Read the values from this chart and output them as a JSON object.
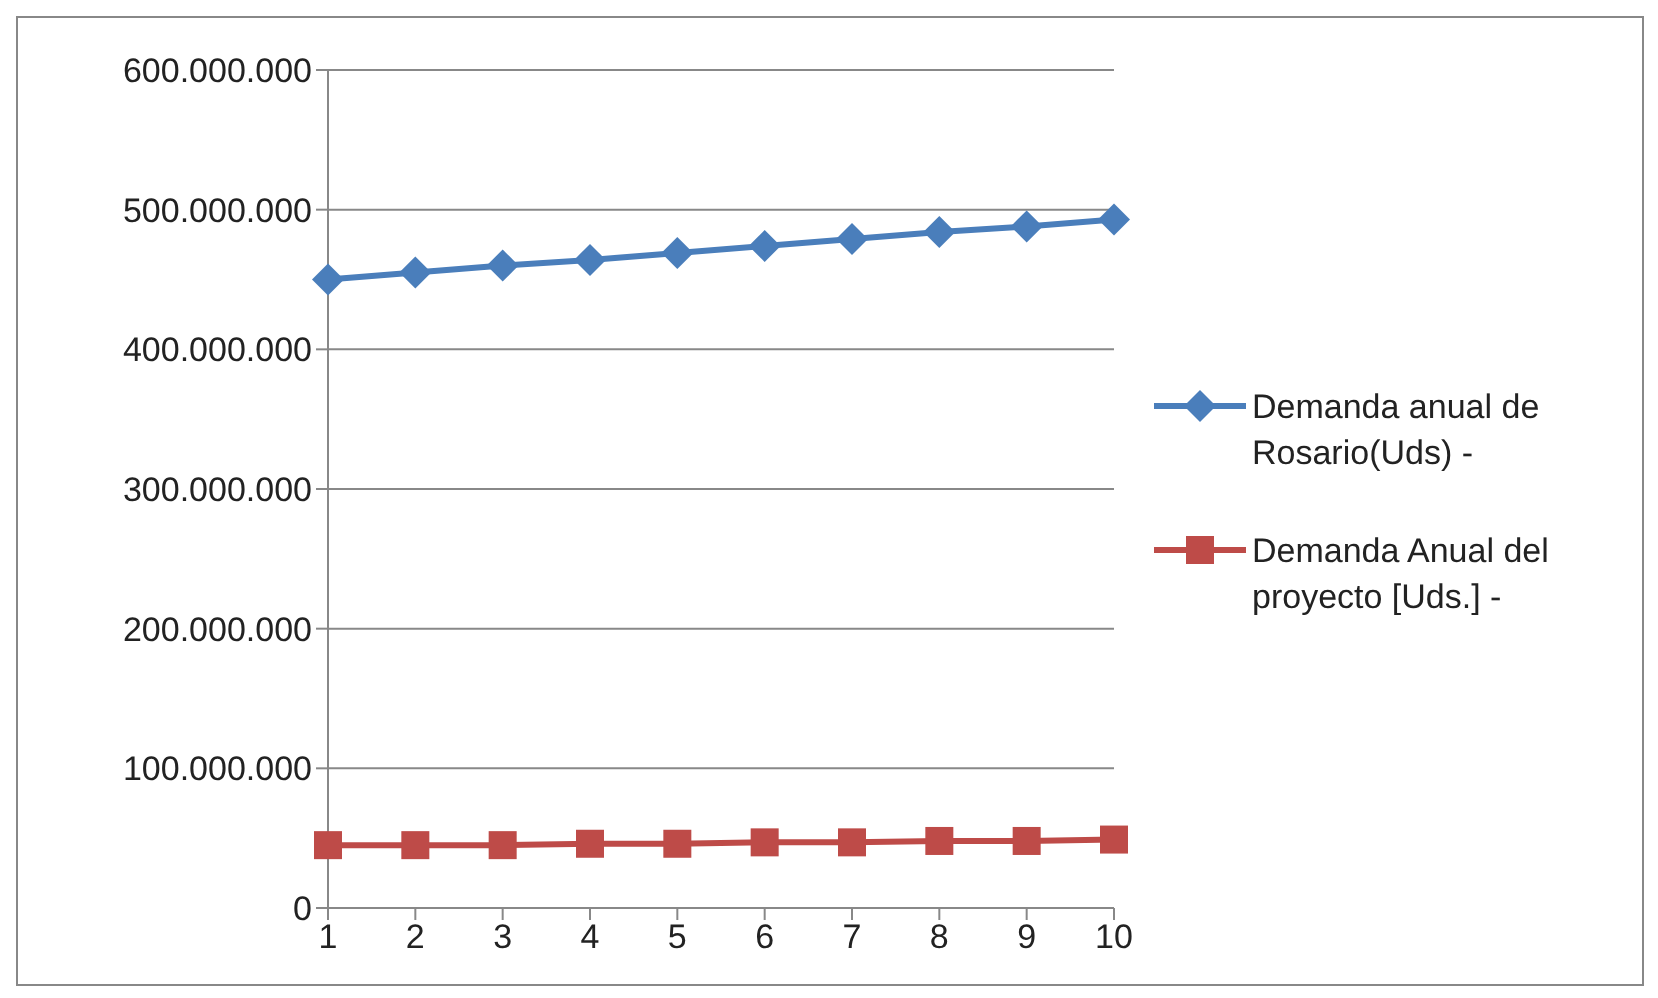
{
  "chart_data": {
    "type": "line",
    "categories": [
      "1",
      "2",
      "3",
      "4",
      "5",
      "6",
      "7",
      "8",
      "9",
      "10"
    ],
    "series": [
      {
        "name": "Demanda anual de Rosario(Uds) -",
        "color": "#4a7ebb",
        "marker": "diamond",
        "values": [
          450000000,
          455000000,
          460000000,
          464000000,
          469000000,
          474000000,
          479000000,
          484000000,
          488000000,
          493000000
        ]
      },
      {
        "name": "Demanda Anual del proyecto [Uds.] -",
        "color": "#be4b48",
        "marker": "square",
        "values": [
          45000000,
          45000000,
          45000000,
          46000000,
          46000000,
          47000000,
          47000000,
          48000000,
          48000000,
          49000000
        ]
      }
    ],
    "ylim": [
      0,
      600000000
    ],
    "yticks": [
      {
        "value": 0,
        "label": "0"
      },
      {
        "value": 100000000,
        "label": "100.000.000"
      },
      {
        "value": 200000000,
        "label": "200.000.000"
      },
      {
        "value": 300000000,
        "label": "300.000.000"
      },
      {
        "value": 400000000,
        "label": "400.000.000"
      },
      {
        "value": 500000000,
        "label": "500.000.000"
      },
      {
        "value": 600000000,
        "label": "600.000.000"
      }
    ],
    "grid": "y",
    "legend": "right"
  }
}
